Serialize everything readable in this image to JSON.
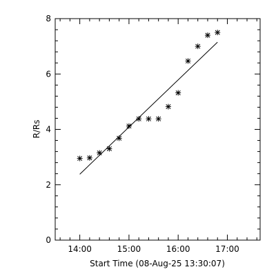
{
  "chart_data": {
    "type": "scatter",
    "title": "",
    "xlabel": "Start Time (08-Aug-25 13:30:07)",
    "ylabel": "R/Rs",
    "x_unit": "time",
    "xlim": [
      "13:30",
      "17:40"
    ],
    "ylim": [
      0,
      8
    ],
    "x_ticks": [
      "14:00",
      "15:00",
      "16:00",
      "17:00"
    ],
    "y_ticks": [
      0,
      2,
      4,
      6,
      8
    ],
    "grid": false,
    "series": [
      {
        "marker": "asterisk",
        "color": "#000000",
        "points": [
          {
            "x": "14:00",
            "y": 2.95
          },
          {
            "x": "14:12",
            "y": 2.97
          },
          {
            "x": "14:24",
            "y": 3.15
          },
          {
            "x": "14:36",
            "y": 3.3
          },
          {
            "x": "14:48",
            "y": 3.68
          },
          {
            "x": "15:00",
            "y": 4.12
          },
          {
            "x": "15:12",
            "y": 4.38
          },
          {
            "x": "15:24",
            "y": 4.38
          },
          {
            "x": "15:36",
            "y": 4.38
          },
          {
            "x": "15:48",
            "y": 4.82
          },
          {
            "x": "16:00",
            "y": 5.32
          },
          {
            "x": "16:12",
            "y": 6.47
          },
          {
            "x": "16:24",
            "y": 7.0
          },
          {
            "x": "16:36",
            "y": 7.4
          },
          {
            "x": "16:48",
            "y": 7.5
          }
        ]
      }
    ],
    "fit_line": [
      {
        "x": "14:00",
        "y": 2.38
      },
      {
        "x": "16:48",
        "y": 7.15
      }
    ]
  }
}
